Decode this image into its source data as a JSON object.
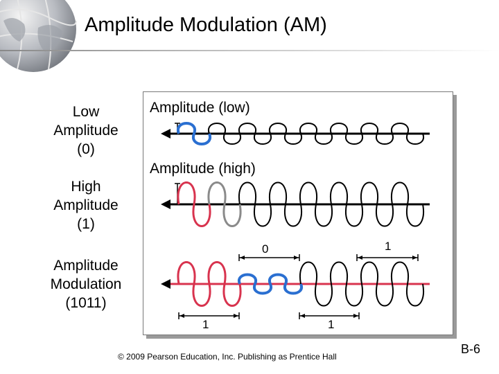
{
  "title": "Amplitude Modulation (AM)",
  "labels": {
    "low": [
      "Low",
      "Amplitude",
      "(0)"
    ],
    "high": [
      "High",
      "Amplitude",
      "(1)"
    ],
    "am": [
      "Amplitude",
      "Modulation",
      "(1011)"
    ]
  },
  "captions": {
    "low": "Amplitude (low)",
    "high": "Amplitude (high)"
  },
  "bits": {
    "top_zero": "0",
    "top_one": "1",
    "bottom_one_left": "1",
    "bottom_one_right": "1"
  },
  "footer": {
    "copyright": "© 2009 Pearson Education, Inc.  Publishing as Prentice Hall",
    "page": "B-6"
  },
  "colors": {
    "blue": "#2a6fd1",
    "red": "#d8334e",
    "gray": "#8a8a8a",
    "black": "#000000"
  }
}
